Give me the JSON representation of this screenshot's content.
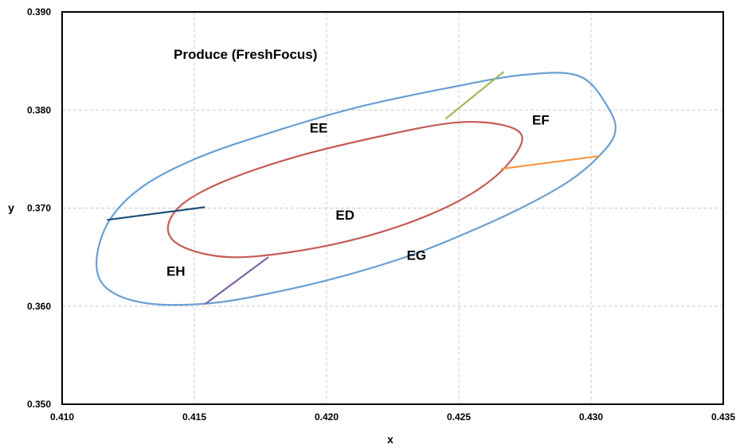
{
  "chart_data": {
    "type": "line",
    "title": "Produce (FreshFocus)",
    "xlabel": "x",
    "ylabel": "y",
    "xlim": [
      0.41,
      0.435
    ],
    "ylim": [
      0.35,
      0.39
    ],
    "grid": true,
    "xticks": [
      "0.410",
      "0.415",
      "0.420",
      "0.425",
      "0.430",
      "0.435"
    ],
    "yticks": [
      "0.350",
      "0.360",
      "0.370",
      "0.380",
      "0.390"
    ],
    "series": [
      {
        "color": "#6a9fd2",
        "values": [
          [
            0.4307,
            0.38
          ],
          [
            0.4309,
            0.3776
          ],
          [
            0.4303,
            0.3753
          ],
          [
            0.4292,
            0.3728
          ],
          [
            0.4275,
            0.3702
          ],
          [
            0.4255,
            0.3677
          ],
          [
            0.4233,
            0.3653
          ],
          [
            0.4208,
            0.3632
          ],
          [
            0.4182,
            0.3615
          ],
          [
            0.4156,
            0.3603
          ],
          [
            0.4132,
            0.3603
          ],
          [
            0.4117,
            0.3618
          ],
          [
            0.4113,
            0.3646
          ],
          [
            0.4118,
            0.3688
          ],
          [
            0.4131,
            0.3723
          ],
          [
            0.4152,
            0.3752
          ],
          [
            0.418,
            0.3778
          ],
          [
            0.4212,
            0.3803
          ],
          [
            0.4245,
            0.3822
          ],
          [
            0.4275,
            0.3836
          ],
          [
            0.4296,
            0.3834
          ],
          [
            0.4307,
            0.38
          ]
        ]
      },
      {
        "color": "#c65b57",
        "values": [
          [
            0.4274,
            0.3772
          ],
          [
            0.4268,
            0.3743
          ],
          [
            0.4255,
            0.3715
          ],
          [
            0.4236,
            0.369
          ],
          [
            0.4212,
            0.3669
          ],
          [
            0.4186,
            0.3655
          ],
          [
            0.4163,
            0.365
          ],
          [
            0.4146,
            0.366
          ],
          [
            0.414,
            0.3678
          ],
          [
            0.4145,
            0.3703
          ],
          [
            0.4161,
            0.3727
          ],
          [
            0.4188,
            0.3752
          ],
          [
            0.422,
            0.3773
          ],
          [
            0.4248,
            0.3787
          ],
          [
            0.4266,
            0.3785
          ],
          [
            0.4274,
            0.3772
          ]
        ]
      },
      {
        "color": "#9bbb59",
        "values": [
          [
            0.4245,
            0.3791
          ],
          [
            0.4267,
            0.3839
          ]
        ]
      },
      {
        "color": "#f79646",
        "values": [
          [
            0.4266,
            0.374
          ],
          [
            0.4303,
            0.3753
          ]
        ]
      },
      {
        "color": "#1f4e79",
        "values": [
          [
            0.4117,
            0.3688
          ],
          [
            0.4154,
            0.3701
          ]
        ]
      },
      {
        "color": "#8064a2",
        "values": [
          [
            0.4154,
            0.3602
          ],
          [
            0.4178,
            0.365
          ]
        ]
      }
    ],
    "labels": [
      {
        "text": "EE",
        "x": 0.4197,
        "y": 0.3782
      },
      {
        "text": "EF",
        "x": 0.4281,
        "y": 0.379
      },
      {
        "text": "ED",
        "x": 0.4207,
        "y": 0.3693
      },
      {
        "text": "EG",
        "x": 0.4234,
        "y": 0.3652
      },
      {
        "text": "EH",
        "x": 0.4143,
        "y": 0.3636
      }
    ]
  }
}
